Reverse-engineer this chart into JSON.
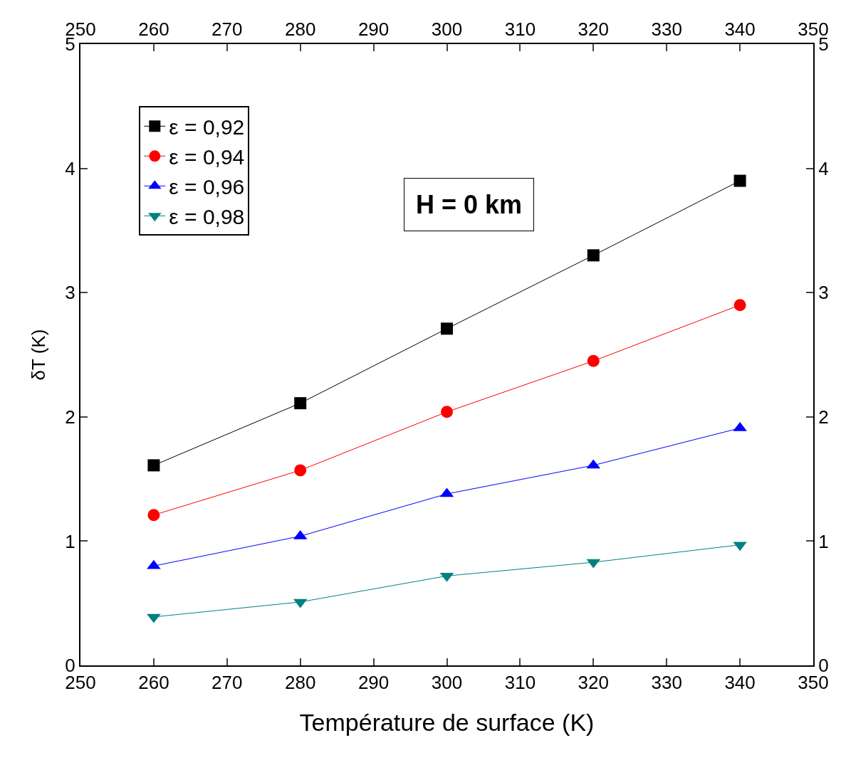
{
  "chart_data": {
    "type": "line",
    "xlabel": "Température de surface (K)",
    "ylabel": "δT (K)",
    "x": [
      260,
      280,
      300,
      320,
      340
    ],
    "series": [
      {
        "name": "ε = 0,92",
        "color": "#000000",
        "marker": "square",
        "values": [
          1.61,
          2.11,
          2.71,
          3.3,
          3.9
        ]
      },
      {
        "name": "ε = 0,94",
        "color": "#ff0000",
        "marker": "circle",
        "values": [
          1.21,
          1.57,
          2.04,
          2.45,
          2.9
        ]
      },
      {
        "name": "ε = 0,96",
        "color": "#0000ff",
        "marker": "triangle",
        "values": [
          0.8,
          1.04,
          1.38,
          1.61,
          1.91
        ]
      },
      {
        "name": "ε = 0,98",
        "color": "#008080",
        "marker": "triangle-down",
        "values": [
          0.39,
          0.51,
          0.72,
          0.83,
          0.97
        ]
      }
    ],
    "annotations": [
      "H = 0 km"
    ],
    "xlim": [
      250,
      350
    ],
    "xticks": [
      250,
      260,
      270,
      280,
      290,
      300,
      310,
      320,
      330,
      340,
      350
    ],
    "x2lim": [
      250,
      350
    ],
    "x2ticks": [
      250,
      260,
      270,
      280,
      290,
      300,
      310,
      320,
      330,
      340,
      350
    ],
    "ylim": [
      0,
      5
    ],
    "yticks": [
      0,
      1,
      2,
      3,
      4,
      5
    ],
    "y2lim": [
      0,
      5
    ],
    "y2ticks": [
      0,
      1,
      2,
      3,
      4,
      5
    ],
    "grid": false,
    "legend": "top left",
    "line_style": "solid"
  }
}
